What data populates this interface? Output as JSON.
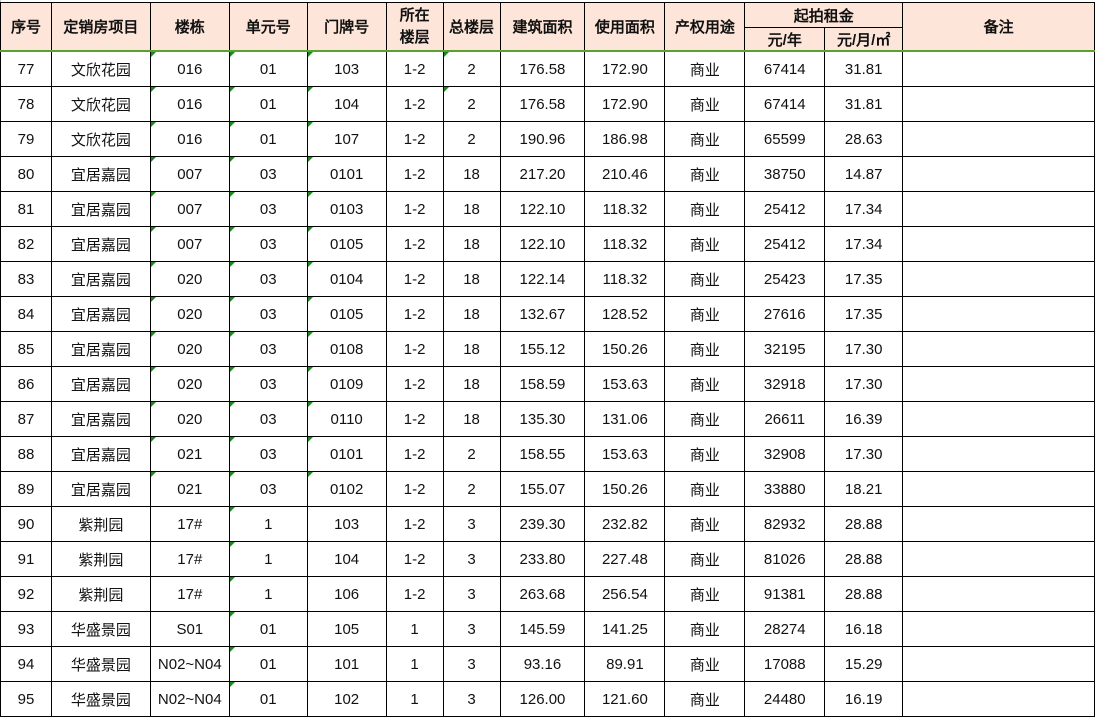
{
  "headers": {
    "seq": "序号",
    "project": "定销房项目",
    "building": "楼栋",
    "unit": "单元号",
    "door": "门牌号",
    "floor": "所在楼层",
    "total_floors": "总楼层",
    "build_area": "建筑面积",
    "use_area": "使用面积",
    "usage": "产权用途",
    "rent_group": "起拍租金",
    "rent_year": "元/年",
    "rent_month_sqm": "元/月/㎡",
    "remarks": "备注"
  },
  "rows": [
    [
      "77",
      "文欣花园",
      "016",
      "01",
      "103",
      "1-2",
      "2",
      "176.58",
      "172.90",
      "商业",
      "67414",
      "31.81",
      ""
    ],
    [
      "78",
      "文欣花园",
      "016",
      "01",
      "104",
      "1-2",
      "2",
      "176.58",
      "172.90",
      "商业",
      "67414",
      "31.81",
      ""
    ],
    [
      "79",
      "文欣花园",
      "016",
      "01",
      "107",
      "1-2",
      "2",
      "190.96",
      "186.98",
      "商业",
      "65599",
      "28.63",
      ""
    ],
    [
      "80",
      "宜居嘉园",
      "007",
      "03",
      "0101",
      "1-2",
      "18",
      "217.20",
      "210.46",
      "商业",
      "38750",
      "14.87",
      ""
    ],
    [
      "81",
      "宜居嘉园",
      "007",
      "03",
      "0103",
      "1-2",
      "18",
      "122.10",
      "118.32",
      "商业",
      "25412",
      "17.34",
      ""
    ],
    [
      "82",
      "宜居嘉园",
      "007",
      "03",
      "0105",
      "1-2",
      "18",
      "122.10",
      "118.32",
      "商业",
      "25412",
      "17.34",
      ""
    ],
    [
      "83",
      "宜居嘉园",
      "020",
      "03",
      "0104",
      "1-2",
      "18",
      "122.14",
      "118.32",
      "商业",
      "25423",
      "17.35",
      ""
    ],
    [
      "84",
      "宜居嘉园",
      "020",
      "03",
      "0105",
      "1-2",
      "18",
      "132.67",
      "128.52",
      "商业",
      "27616",
      "17.35",
      ""
    ],
    [
      "85",
      "宜居嘉园",
      "020",
      "03",
      "0108",
      "1-2",
      "18",
      "155.12",
      "150.26",
      "商业",
      "32195",
      "17.30",
      ""
    ],
    [
      "86",
      "宜居嘉园",
      "020",
      "03",
      "0109",
      "1-2",
      "18",
      "158.59",
      "153.63",
      "商业",
      "32918",
      "17.30",
      ""
    ],
    [
      "87",
      "宜居嘉园",
      "020",
      "03",
      "0110",
      "1-2",
      "18",
      "135.30",
      "131.06",
      "商业",
      "26611",
      "16.39",
      ""
    ],
    [
      "88",
      "宜居嘉园",
      "021",
      "03",
      "0101",
      "1-2",
      "2",
      "158.55",
      "153.63",
      "商业",
      "32908",
      "17.30",
      ""
    ],
    [
      "89",
      "宜居嘉园",
      "021",
      "03",
      "0102",
      "1-2",
      "2",
      "155.07",
      "150.26",
      "商业",
      "33880",
      "18.21",
      ""
    ],
    [
      "90",
      "紫荆园",
      "17#",
      "1",
      "103",
      "1-2",
      "3",
      "239.30",
      "232.82",
      "商业",
      "82932",
      "28.88",
      ""
    ],
    [
      "91",
      "紫荆园",
      "17#",
      "1",
      "104",
      "1-2",
      "3",
      "233.80",
      "227.48",
      "商业",
      "81026",
      "28.88",
      ""
    ],
    [
      "92",
      "紫荆园",
      "17#",
      "1",
      "106",
      "1-2",
      "3",
      "263.68",
      "256.54",
      "商业",
      "91381",
      "28.88",
      ""
    ],
    [
      "93",
      "华盛景园",
      "S01",
      "01",
      "105",
      "1",
      "3",
      "145.59",
      "141.25",
      "商业",
      "28274",
      "16.18",
      ""
    ],
    [
      "94",
      "华盛景园",
      "N02~N04",
      "01",
      "101",
      "1",
      "3",
      "93.16",
      "89.91",
      "商业",
      "17088",
      "15.29",
      ""
    ],
    [
      "95",
      "华盛景园",
      "N02~N04",
      "01",
      "102",
      "1",
      "3",
      "126.00",
      "121.60",
      "商业",
      "24480",
      "16.19",
      ""
    ]
  ],
  "colors": {
    "header_bg": "#fde5d9",
    "header_rule": "#5aa02c",
    "comment_marker": "#1a8a1a"
  }
}
